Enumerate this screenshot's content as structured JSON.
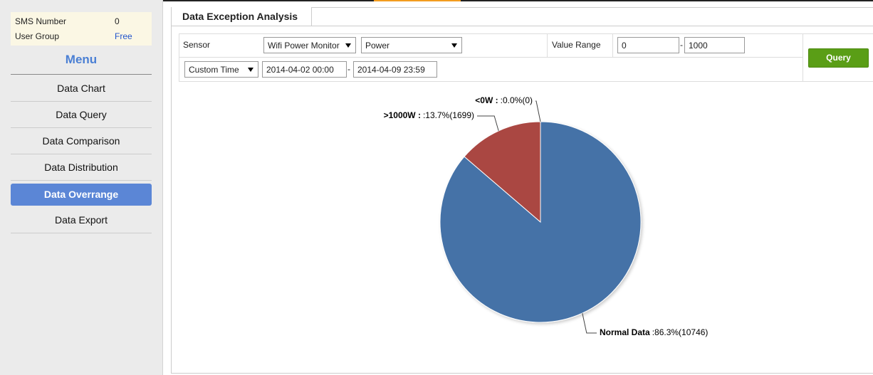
{
  "sidebar": {
    "info": [
      {
        "label": "SMS Number",
        "value": "0"
      },
      {
        "label": "User Group",
        "value": "Free"
      }
    ],
    "menu_title": "Menu",
    "menu": [
      "Data Chart",
      "Data Query",
      "Data Comparison",
      "Data Distribution",
      "Data Overrange",
      "Data Export"
    ]
  },
  "tab": "Data Exception Analysis",
  "form": {
    "sensor_label": "Sensor",
    "sensor": "Wifi Power Monitor",
    "channel": "Power",
    "range_label": "Value Range",
    "range_min": 0,
    "separator": "-",
    "range_max": 1000,
    "time_mode": "Custom Time",
    "start": "2014-04-02 00:00",
    "end": "2014-04-09 23:59",
    "query": "Query"
  },
  "chart_data": {
    "type": "pie",
    "categories": [
      "Normal Data",
      ">1000W :",
      "<0W :"
    ],
    "values": [
      86.3,
      13.7,
      0.0
    ],
    "value_labels": [
      ":86.3%(10746)",
      ":13.7%(1699)",
      ":0.0%(0)"
    ],
    "colors": [
      "#4572a7",
      "#aa4643",
      "#89a54e"
    ]
  }
}
